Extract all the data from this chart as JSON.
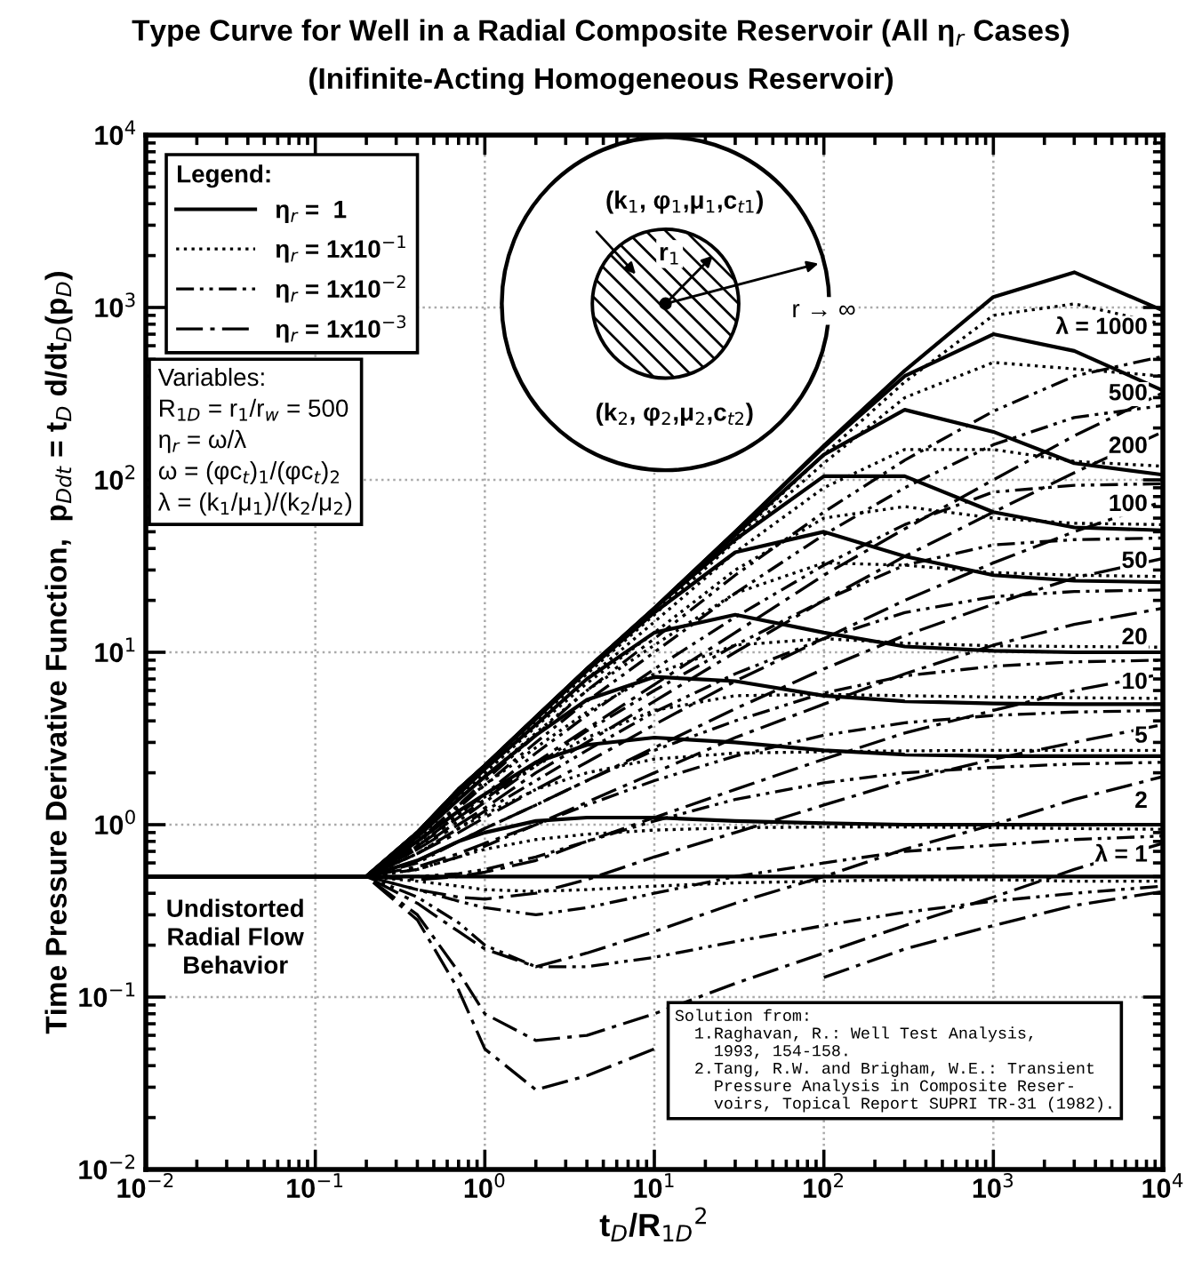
{
  "chart_data": {
    "type": "line",
    "title": "Type Curve for Well in a Radial Composite Reservoir (All η$_{r}$ Cases)",
    "subtitle": "(Inifinite-Acting Homogeneous Reservoir)",
    "xlabel": "t$_{D}$/R$_{1D}$$^{2}$",
    "ylabel": "Time Pressure Derivative Function,  p$_{Ddt}$ = t$_{D}$ d/dt$_{D}$(p$_{D}$)",
    "legend_title": "Legend:",
    "log": "xy",
    "grid": true,
    "legend": "top left",
    "xlim": [
      0.01,
      10000
    ],
    "ylim": [
      0.01,
      10000
    ],
    "xticks": [
      {
        "value": 0.01,
        "label": "10$^{−2}$"
      },
      {
        "value": 0.1,
        "label": "10$^{−1}$"
      },
      {
        "value": 1,
        "label": "10$^{0}$"
      },
      {
        "value": 10,
        "label": "10$^{1}$"
      },
      {
        "value": 100,
        "label": "10$^{2}$"
      },
      {
        "value": 1000,
        "label": "10$^{3}$"
      },
      {
        "value": 10000,
        "label": "10$^{4}$"
      }
    ],
    "yticks": [
      {
        "value": 0.01,
        "label": "10$^{−2}$"
      },
      {
        "value": 0.1,
        "label": "10$^{−1}$"
      },
      {
        "value": 1,
        "label": "10$^{0}$"
      },
      {
        "value": 10,
        "label": "10$^{1}$"
      },
      {
        "value": 100,
        "label": "10$^{2}$"
      },
      {
        "value": 1000,
        "label": "10$^{3}$"
      },
      {
        "value": 10000,
        "label": "10$^{4}$"
      }
    ],
    "x": [
      0.01,
      0.2,
      0.4,
      0.7,
      1,
      2,
      4,
      10,
      30,
      100,
      300,
      1000,
      3000,
      10000
    ],
    "series": [
      {
        "name": "η$_{r}$ =  1",
        "color": "#000000",
        "line_style": "solid",
        "values": [
          0.5,
          0.5,
          0.9,
          1.6,
          2.2,
          4.2,
          8,
          18,
          50,
          158,
          430,
          1150,
          1600,
          960
        ]
      },
      {
        "color": "#000000",
        "line_style": "solid",
        "values": [
          0.5,
          0.5,
          0.9,
          1.6,
          2.2,
          4.2,
          8,
          18,
          50,
          155,
          400,
          700,
          560,
          330
        ]
      },
      {
        "color": "#000000",
        "line_style": "solid",
        "values": [
          0.5,
          0.5,
          0.9,
          1.6,
          2.2,
          4.2,
          8,
          18,
          48,
          140,
          255,
          190,
          125,
          107
        ]
      },
      {
        "color": "#000000",
        "line_style": "solid",
        "values": [
          0.5,
          0.5,
          0.9,
          1.6,
          2.2,
          4.2,
          8,
          18,
          45,
          105,
          105,
          65,
          53,
          51
        ]
      },
      {
        "color": "#000000",
        "line_style": "solid",
        "values": [
          0.5,
          0.5,
          0.9,
          1.6,
          2.2,
          4.1,
          7.8,
          17,
          38,
          50,
          36,
          28,
          26,
          25.5
        ]
      },
      {
        "color": "#000000",
        "line_style": "solid",
        "values": [
          0.5,
          0.5,
          0.88,
          1.5,
          2.1,
          3.8,
          7,
          13,
          16.5,
          13,
          10.8,
          10.2,
          10,
          10
        ]
      },
      {
        "color": "#000000",
        "line_style": "solid",
        "values": [
          0.5,
          0.5,
          0.85,
          1.4,
          1.9,
          3.3,
          5.3,
          7.2,
          6.8,
          5.6,
          5.2,
          5.05,
          5,
          5
        ]
      },
      {
        "color": "#000000",
        "line_style": "solid",
        "values": [
          0.5,
          0.5,
          0.8,
          1.2,
          1.5,
          2.3,
          2.9,
          3.2,
          3.0,
          2.7,
          2.55,
          2.5,
          2.5,
          2.5
        ]
      },
      {
        "color": "#000000",
        "line_style": "solid",
        "values": [
          0.5,
          0.5,
          0.62,
          0.8,
          0.9,
          1.05,
          1.1,
          1.1,
          1.05,
          1.02,
          1.0,
          1.0,
          1.0,
          1.0
        ]
      },
      {
        "color": "#000000",
        "line_style": "solid",
        "values": [
          0.5,
          0.5,
          0.5,
          0.5,
          0.5,
          0.5,
          0.5,
          0.5,
          0.5,
          0.5,
          0.5,
          0.5,
          0.5,
          0.5
        ]
      },
      {
        "name": "η$_{r}$ = 1x10$^{−1}$",
        "color": "#000000",
        "line_style": "dotted",
        "values": [
          0.5,
          0.5,
          0.85,
          1.5,
          2.1,
          4.0,
          7.6,
          17,
          46,
          140,
          370,
          900,
          1050,
          800
        ]
      },
      {
        "color": "#000000",
        "line_style": "dotted",
        "values": [
          0.5,
          0.5,
          0.85,
          1.5,
          2.1,
          4.0,
          7.5,
          16.5,
          44,
          125,
          300,
          480,
          440,
          400
        ]
      },
      {
        "color": "#000000",
        "line_style": "dotted",
        "values": [
          0.5,
          0.5,
          0.85,
          1.5,
          2.0,
          3.8,
          7,
          15,
          38,
          90,
          150,
          150,
          128,
          120
        ]
      },
      {
        "color": "#000000",
        "line_style": "dotted",
        "values": [
          0.5,
          0.5,
          0.85,
          1.45,
          2.0,
          3.7,
          6.6,
          13,
          30,
          60,
          70,
          60,
          56,
          55
        ]
      },
      {
        "color": "#000000",
        "line_style": "dotted",
        "values": [
          0.5,
          0.5,
          0.83,
          1.4,
          1.9,
          3.4,
          6,
          11,
          22,
          33,
          32,
          29,
          28,
          27.5
        ]
      },
      {
        "color": "#000000",
        "line_style": "dotted",
        "values": [
          0.5,
          0.5,
          0.8,
          1.3,
          1.7,
          2.8,
          4.5,
          7.5,
          11,
          12,
          11.3,
          10.9,
          10.8,
          10.7
        ]
      },
      {
        "color": "#000000",
        "line_style": "dotted",
        "values": [
          0.5,
          0.5,
          0.75,
          1.15,
          1.45,
          2.2,
          3.2,
          4.6,
          5.6,
          5.7,
          5.6,
          5.5,
          5.45,
          5.4
        ]
      },
      {
        "color": "#000000",
        "line_style": "dotted",
        "values": [
          0.5,
          0.5,
          0.68,
          0.95,
          1.15,
          1.6,
          2.0,
          2.4,
          2.6,
          2.65,
          2.68,
          2.7,
          2.7,
          2.7
        ]
      },
      {
        "color": "#000000",
        "line_style": "dotted",
        "values": [
          0.5,
          0.5,
          0.55,
          0.65,
          0.72,
          0.82,
          0.88,
          0.93,
          0.96,
          0.97,
          0.97,
          0.96,
          0.95,
          0.94
        ]
      },
      {
        "color": "#000000",
        "line_style": "dotted",
        "values": [
          0.5,
          0.5,
          0.47,
          0.44,
          0.42,
          0.41,
          0.42,
          0.44,
          0.46,
          0.47,
          0.48,
          0.48,
          0.47,
          0.47
        ]
      },
      {
        "name": "η$_{r}$ = 1x10$^{−2}$",
        "color": "#000000",
        "line_style": "dashdotdot",
        "values": [
          0.5,
          0.5,
          0.8,
          1.3,
          1.8,
          3.3,
          6,
          12,
          28,
          65,
          130,
          250,
          400,
          520
        ]
      },
      {
        "color": "#000000",
        "line_style": "dashdotdot",
        "values": [
          0.5,
          0.5,
          0.78,
          1.25,
          1.7,
          3.0,
          5.2,
          10,
          22,
          48,
          90,
          160,
          230,
          270
        ]
      },
      {
        "color": "#000000",
        "line_style": "dashdotdot",
        "values": [
          0.5,
          0.5,
          0.75,
          1.15,
          1.5,
          2.6,
          4.3,
          8,
          16,
          32,
          55,
          85,
          93,
          95
        ]
      },
      {
        "color": "#000000",
        "line_style": "dashdotdot",
        "values": [
          0.5,
          0.5,
          0.72,
          1.05,
          1.35,
          2.2,
          3.5,
          6,
          11,
          20,
          32,
          42,
          45,
          46
        ]
      },
      {
        "color": "#000000",
        "line_style": "dashdotdot",
        "values": [
          0.5,
          0.5,
          0.68,
          0.95,
          1.2,
          1.8,
          2.7,
          4.5,
          7.5,
          12,
          17,
          21,
          22.5,
          23
        ]
      },
      {
        "color": "#000000",
        "line_style": "dashdotdot",
        "values": [
          0.5,
          0.5,
          0.6,
          0.8,
          0.95,
          1.3,
          1.8,
          2.7,
          4,
          5.8,
          7.3,
          8.3,
          8.8,
          9.0
        ]
      },
      {
        "color": "#000000",
        "line_style": "dashdotdot",
        "values": [
          0.5,
          0.5,
          0.55,
          0.65,
          0.75,
          1.0,
          1.3,
          1.8,
          2.5,
          3.3,
          3.9,
          4.3,
          4.5,
          4.6
        ]
      },
      {
        "color": "#000000",
        "line_style": "dashdotdot",
        "values": [
          0.5,
          0.5,
          0.5,
          0.52,
          0.55,
          0.65,
          0.8,
          1.05,
          1.4,
          1.75,
          2.0,
          2.15,
          2.25,
          2.3
        ]
      },
      {
        "color": "#000000",
        "line_style": "dashdotdot",
        "values": [
          0.5,
          0.5,
          0.42,
          0.36,
          0.33,
          0.3,
          0.33,
          0.4,
          0.5,
          0.6,
          0.7,
          0.76,
          0.82,
          0.86
        ]
      },
      {
        "color": "#000000",
        "line_style": "dashdotdot",
        "values": [
          0.5,
          0.5,
          0.38,
          0.27,
          0.2,
          0.15,
          0.15,
          0.17,
          0.21,
          0.26,
          0.31,
          0.36,
          0.4,
          0.44
        ]
      },
      {
        "name": "η$_{r}$ = 1x10$^{−3}$",
        "color": "#000000",
        "line_style": "dashdot",
        "values": [
          0.5,
          0.5,
          0.75,
          1.1,
          1.4,
          2.3,
          3.6,
          6.5,
          13,
          28,
          52,
          100,
          180,
          320
        ]
      },
      {
        "color": "#000000",
        "line_style": "dashdot",
        "values": [
          0.5,
          0.5,
          0.72,
          1.0,
          1.25,
          2.0,
          3.0,
          5.2,
          10,
          20,
          36,
          65,
          110,
          190
        ]
      },
      {
        "color": "#000000",
        "line_style": "dashdot",
        "values": [
          0.5,
          0.5,
          0.68,
          0.9,
          1.1,
          1.6,
          2.3,
          3.8,
          6.8,
          12,
          20,
          33,
          50,
          75
        ]
      },
      {
        "color": "#000000",
        "line_style": "dashdot",
        "values": [
          0.5,
          0.5,
          0.62,
          0.8,
          0.95,
          1.3,
          1.8,
          2.8,
          4.7,
          8,
          12.5,
          19,
          27,
          35
        ]
      },
      {
        "color": "#000000",
        "line_style": "dashdot",
        "values": [
          0.5,
          0.5,
          0.57,
          0.68,
          0.78,
          1.0,
          1.35,
          2.0,
          3.2,
          5,
          7.5,
          11,
          14.5,
          18
        ]
      },
      {
        "color": "#000000",
        "line_style": "dashdot",
        "values": [
          0.5,
          0.5,
          0.48,
          0.5,
          0.53,
          0.62,
          0.8,
          1.1,
          1.6,
          2.4,
          3.4,
          4.6,
          6,
          7.5
        ]
      },
      {
        "color": "#000000",
        "line_style": "dashdot",
        "values": [
          0.5,
          0.5,
          0.42,
          0.38,
          0.37,
          0.4,
          0.48,
          0.65,
          0.9,
          1.3,
          1.8,
          2.4,
          3.0,
          3.8
        ]
      },
      {
        "color": "#000000",
        "line_style": "dashdot",
        "values": [
          0.5,
          0.5,
          0.35,
          0.24,
          0.19,
          0.15,
          0.18,
          0.24,
          0.35,
          0.5,
          0.72,
          1.0,
          1.4,
          1.9
        ]
      },
      {
        "color": "#000000",
        "line_style": "dashdot",
        "values": [
          0.5,
          0.5,
          0.3,
          0.14,
          0.08,
          0.056,
          0.06,
          0.08,
          0.12,
          0.18,
          0.26,
          0.38,
          0.55,
          0.78
        ]
      },
      {
        "color": "#000000",
        "line_style": "dashdot",
        "values": [
          0.5,
          0.5,
          0.28,
          0.11,
          0.05,
          0.029,
          0.035,
          0.05,
          null,
          0.13,
          0.19,
          0.26,
          0.34,
          0.41
        ]
      }
    ],
    "annotations": [
      "Variables:",
      "R$_{1D}$ = r$_{1}$/r$_{w}$ = 500",
      "η$_{r}$ = ω/λ",
      "ω = (φc$_{t}$)$_{1}$/(φc$_{t}$)$_{2}$",
      "λ = (k$_{1}$/μ$_{1}$)/(k$_{2}$/μ$_{2}$)",
      "(k$_{1}$, φ$_{1}$,μ$_{1}$,c$_{t1}$)",
      "r$_{1}$",
      "r → ∞",
      "(k$_{2}$, φ$_{2}$,μ$_{2}$,c$_{t2}$)",
      "Undistorted\nRadial Flow\nBehavior",
      "Solution from:\n  1.Raghavan, R.: Well Test Analysis,\n    1993, 154-158.\n  2.Tang, R.W. and Brigham, W.E.: Transient\n    Pressure Analysis in Composite Reser-\n    voirs, Topical Report SUPRI TR-31 (1982).",
      "λ = 1000",
      "500",
      "200",
      "100",
      "50",
      "20",
      "10",
      "5",
      "2",
      "λ = 1"
    ]
  }
}
